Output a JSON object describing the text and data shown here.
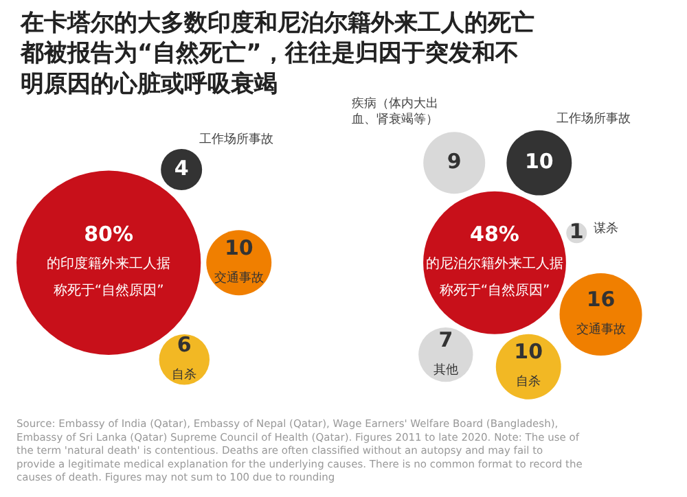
{
  "chart_data": [
    {
      "type": "other",
      "title": "在卡塔尔的大多数印度和尼泊尔籍外来工人的死亡都被报告为“自然死亡”，往往是归因于突发和不明原因的心脏或呼吸衰竭",
      "categories": [
        "的印度籍外来工人据称死于“自然原因”",
        "工作场所事故",
        "交通事故",
        "自杀"
      ],
      "values": [
        80,
        4,
        10,
        6
      ],
      "value_labels": [
        "80%",
        "4",
        "10",
        "6"
      ],
      "colors": [
        "#c8101a",
        "#333333",
        "#f07f00",
        "#f2b824"
      ]
    },
    {
      "type": "other",
      "categories": [
        "的尼泊尔籍外来工人据称死于“自然原因”",
        "疾病（体内大出血、肾衰竭等）",
        "工作场所事故",
        "谋杀",
        "交通事故",
        "自杀",
        "其他"
      ],
      "values": [
        48,
        9,
        10,
        1,
        16,
        10,
        7
      ],
      "value_labels": [
        "48%",
        "9",
        "10",
        "1",
        "16",
        "10",
        "7"
      ],
      "colors": [
        "#c8101a",
        "#d9d9d9",
        "#333333",
        "#d9d9d9",
        "#f07f00",
        "#f2b824",
        "#d9d9d9"
      ],
      "annotations": [
        "Source: Embassy of India (Qatar), Embassy of Nepal (Qatar), Wage Earners' Welfare Board (Bangladesh), Embassy of Sri Lanka (Qatar) Supreme Council of Health (Qatar). Figures 2011 to late 2020. Note: The use of the term 'natural death' is contentious. Deaths are often classified without an autopsy and may fail to provide a legitimate medical explanation for the underlying causes. There is no common format to record the causes of death. Figures may not sum to 100 due to rounding"
      ]
    }
  ]
}
